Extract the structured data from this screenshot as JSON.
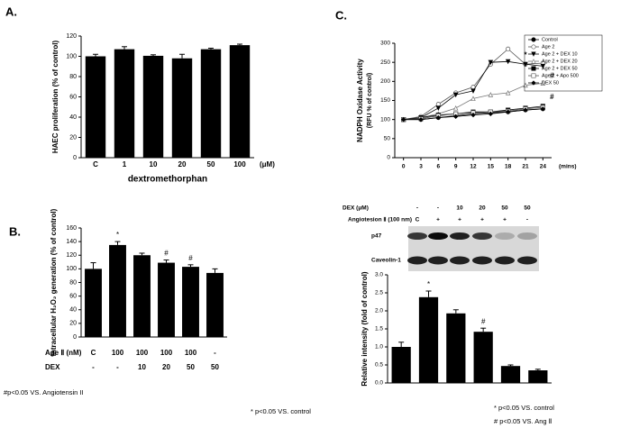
{
  "panel_labels": [
    "A.",
    "B.",
    "C."
  ],
  "chart_data": [
    {
      "type": "bar",
      "y_label": "HAEC proliferation (% of control)",
      "categories": [
        "C",
        "1",
        "10",
        "20",
        "50",
        "100"
      ],
      "values": [
        100,
        107,
        100.5,
        98,
        107,
        111
      ],
      "errors": [
        2,
        2.5,
        1,
        4,
        1,
        1
      ],
      "color": "#000000",
      "ylim": [
        0,
        120
      ],
      "yticks": [
        0,
        20,
        40,
        60,
        80,
        100,
        120
      ],
      "x_label": "dextromethorphan",
      "x_unit": "(μM)"
    },
    {
      "type": "bar",
      "y_label": "Intracellular H₂O₂ generation (% of control)",
      "rows": [
        {
          "label": "Age Ⅱ  (nM)",
          "values": [
            "C",
            "100",
            "100",
            "100",
            "100",
            "-"
          ]
        },
        {
          "label": "DEX",
          "values": [
            "-",
            "-",
            "10",
            "20",
            "50",
            "50"
          ]
        }
      ],
      "values": [
        100,
        135,
        120,
        109,
        103,
        94
      ],
      "errors": [
        9,
        5,
        3,
        4,
        3,
        6
      ],
      "markers": [
        null,
        "*",
        null,
        "#",
        "#",
        null
      ],
      "color": "#000000",
      "ylim": [
        0,
        160
      ],
      "yticks": [
        0,
        20,
        40,
        60,
        80,
        100,
        120,
        140,
        160
      ],
      "footnotes": [
        "#p<0.05 VS. Angiotensin II",
        "* p<0.05 VS. control"
      ]
    },
    {
      "type": "line",
      "y_label": "NADPH Oxidase Activity",
      "y_label2": "(RFU % of control)",
      "x": [
        0,
        3,
        6,
        9,
        12,
        15,
        18,
        21,
        24
      ],
      "x_unit": "(mins)",
      "xlim": [
        -1.5,
        25.5
      ],
      "xticks": [
        0,
        3,
        6,
        9,
        12,
        15,
        18,
        21,
        24
      ],
      "ylim": [
        0,
        300
      ],
      "yticks": [
        0,
        50,
        100,
        150,
        200,
        250,
        300
      ],
      "series": [
        {
          "name": "Control",
          "color": "#000000",
          "marker": "circle",
          "filled": true,
          "values": [
            100,
            100,
            105,
            110,
            115,
            118,
            120,
            125,
            128
          ]
        },
        {
          "name": "Age 2",
          "color": "#555555",
          "marker": "circle",
          "filled": false,
          "values": [
            100,
            108,
            140,
            170,
            185,
            245,
            285,
            245,
            248
          ]
        },
        {
          "name": "Age 2 + DEX 10",
          "color": "#000000",
          "marker": "triangle-down",
          "filled": true,
          "values": [
            100,
            105,
            130,
            165,
            175,
            250,
            252,
            245,
            240
          ]
        },
        {
          "name": "Age 2 + DEX 20",
          "color": "#777777",
          "marker": "triangle-up",
          "filled": false,
          "values": [
            100,
            105,
            115,
            130,
            155,
            165,
            170,
            190,
            195
          ]
        },
        {
          "name": "Age 2 + DEX 50",
          "color": "#000000",
          "marker": "square",
          "filled": true,
          "values": [
            100,
            105,
            112,
            115,
            120,
            120,
            125,
            130,
            135
          ]
        },
        {
          "name": "Age 2 + Apo 500",
          "color": "#555555",
          "marker": "square",
          "filled": false,
          "values": [
            100,
            102,
            110,
            115,
            118,
            120,
            122,
            128,
            132
          ]
        },
        {
          "name": "DEX 50",
          "color": "#000000",
          "marker": "diamond",
          "filled": true,
          "values": [
            100,
            100,
            105,
            108,
            112,
            115,
            120,
            125,
            128
          ]
        }
      ],
      "annotations": [
        "*",
        "#",
        "#"
      ]
    },
    {
      "type": "bar",
      "y_label": "Relative intensity (fold of control)",
      "values": [
        1.0,
        2.38,
        1.93,
        1.42,
        0.47,
        0.35
      ],
      "errors": [
        0.13,
        0.17,
        0.1,
        0.1,
        0.03,
        0.03
      ],
      "markers": [
        null,
        "*",
        null,
        "#",
        null,
        null
      ],
      "color": "#000000",
      "ylim": [
        0,
        3
      ],
      "yticks": [
        {
          "value": 0,
          "label": "0.0"
        },
        0.5,
        {
          "value": 1,
          "label": "1.0"
        },
        1.5,
        {
          "value": 2,
          "label": "2.0"
        },
        2.5,
        {
          "value": 3,
          "label": "3.0"
        }
      ],
      "footnotes": [
        "* p<0.05 VS. control",
        "# p<0.05 VS. Ang Ⅱ"
      ]
    }
  ],
  "blot": {
    "rows": [
      {
        "label": "DEX (μM)",
        "values": [
          "-",
          "-",
          "10",
          "20",
          "50",
          "50"
        ]
      },
      {
        "label": "Angiotesion Ⅱ (100 nm)",
        "values": [
          "C",
          "+",
          "+",
          "+",
          "+",
          "-"
        ]
      }
    ],
    "bands": [
      "p47",
      "Caveolin-1"
    ]
  }
}
